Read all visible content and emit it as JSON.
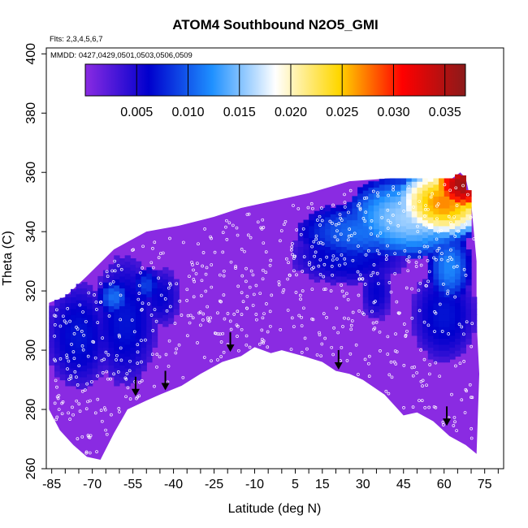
{
  "chart_data": {
    "type": "heatmap",
    "title": "ATOM4 Southbound N2O5_GMI",
    "flights_label": "Flts: 2,3,4,5,6,7",
    "dates_label": "MMDD: 0427,0429,0501,0503,0506,0509",
    "xlabel": "Latitude (deg N)",
    "ylabel": "Theta (C)",
    "xlim": [
      -87,
      82
    ],
    "ylim": [
      260,
      402
    ],
    "x_tick_values": [
      -85,
      -70,
      -55,
      -40,
      -25,
      -10,
      5,
      15,
      30,
      45,
      60,
      75
    ],
    "x_tick_labels": [
      "-85",
      "-70",
      "-55",
      "-40",
      "-25",
      "-10",
      "5",
      "15",
      "30",
      "45",
      "60",
      "75"
    ],
    "y_ticks": [
      260,
      280,
      300,
      320,
      340,
      360,
      380,
      400
    ],
    "y_tick_labels": [
      "260",
      "280",
      "300",
      "320",
      "340",
      "360",
      "380",
      "400"
    ],
    "colorbar": {
      "range": [
        0.0,
        0.037
      ],
      "ticks": [
        0.005,
        0.01,
        0.015,
        0.02,
        0.025,
        0.03,
        0.035
      ],
      "tick_labels": [
        "0.005",
        "0.010",
        "0.015",
        "0.020",
        "0.025",
        "0.030",
        "0.035"
      ],
      "colors": [
        "#8a2be2",
        "#0000cd",
        "#1e90ff",
        "#ffffff",
        "#ffd700",
        "#ff0000",
        "#8b1a1a"
      ]
    },
    "field_upper_boundary": [
      [
        -86,
        316
      ],
      [
        -80,
        318
      ],
      [
        -72,
        325
      ],
      [
        -62,
        334
      ],
      [
        -50,
        340
      ],
      [
        -38,
        342
      ],
      [
        -25,
        345
      ],
      [
        -15,
        348
      ],
      [
        -5,
        350
      ],
      [
        10,
        353
      ],
      [
        25,
        357
      ],
      [
        40,
        358
      ],
      [
        55,
        358
      ],
      [
        63,
        358
      ],
      [
        66,
        360
      ],
      [
        68,
        358
      ],
      [
        70,
        350
      ],
      [
        71,
        340
      ],
      [
        72,
        330
      ],
      [
        72,
        310
      ],
      [
        73,
        292
      ]
    ],
    "field_lower_boundary": [
      [
        -86,
        280
      ],
      [
        -82,
        273
      ],
      [
        -77,
        268
      ],
      [
        -72,
        264
      ],
      [
        -67,
        263
      ],
      [
        -62,
        272
      ],
      [
        -57,
        280
      ],
      [
        -50,
        283
      ],
      [
        -45,
        285
      ],
      [
        -37,
        288
      ],
      [
        -30,
        292
      ],
      [
        -22,
        296
      ],
      [
        -15,
        298
      ],
      [
        -10,
        301
      ],
      [
        -4,
        299
      ],
      [
        0,
        300
      ],
      [
        8,
        298
      ],
      [
        15,
        296
      ],
      [
        20,
        293
      ],
      [
        25,
        292
      ],
      [
        30,
        290
      ],
      [
        38,
        285
      ],
      [
        45,
        278
      ],
      [
        50,
        279
      ],
      [
        56,
        276
      ],
      [
        62,
        271
      ],
      [
        68,
        268
      ],
      [
        72,
        265
      ]
    ],
    "high_zones": [
      {
        "center": [
          67,
          356
        ],
        "radius": [
          12,
          10
        ],
        "value": 0.036
      },
      {
        "center": [
          60,
          350
        ],
        "radius": [
          18,
          12
        ],
        "value": 0.027
      },
      {
        "center": [
          48,
          345
        ],
        "radius": [
          25,
          14
        ],
        "value": 0.016
      },
      {
        "center": [
          30,
          340
        ],
        "radius": [
          24,
          10
        ],
        "value": 0.011
      },
      {
        "center": [
          62,
          328
        ],
        "radius": [
          8,
          12
        ],
        "value": 0.012
      },
      {
        "center": [
          -62,
          318
        ],
        "radius": [
          6,
          6
        ],
        "value": 0.011
      },
      {
        "center": [
          -50,
          322
        ],
        "radius": [
          5,
          6
        ],
        "value": 0.009
      }
    ],
    "mid_zones": [
      {
        "center": [
          -75,
          305
        ],
        "radius": [
          12,
          18
        ],
        "value": 0.007
      },
      {
        "center": [
          -58,
          310
        ],
        "radius": [
          12,
          22
        ],
        "value": 0.007
      },
      {
        "center": [
          -45,
          318
        ],
        "radius": [
          8,
          10
        ],
        "value": 0.006
      },
      {
        "center": [
          25,
          332
        ],
        "radius": [
          22,
          10
        ],
        "value": 0.007
      },
      {
        "center": [
          60,
          312
        ],
        "radius": [
          12,
          16
        ],
        "value": 0.007
      },
      {
        "center": [
          35,
          320
        ],
        "radius": [
          6,
          10
        ],
        "value": 0.006
      }
    ],
    "arrows": [
      {
        "lat": -54,
        "theta": 285
      },
      {
        "lat": -43,
        "theta": 287
      },
      {
        "lat": -19,
        "theta": 300
      },
      {
        "lat": 21,
        "theta": 294
      },
      {
        "lat": 61,
        "theta": 275
      }
    ]
  }
}
